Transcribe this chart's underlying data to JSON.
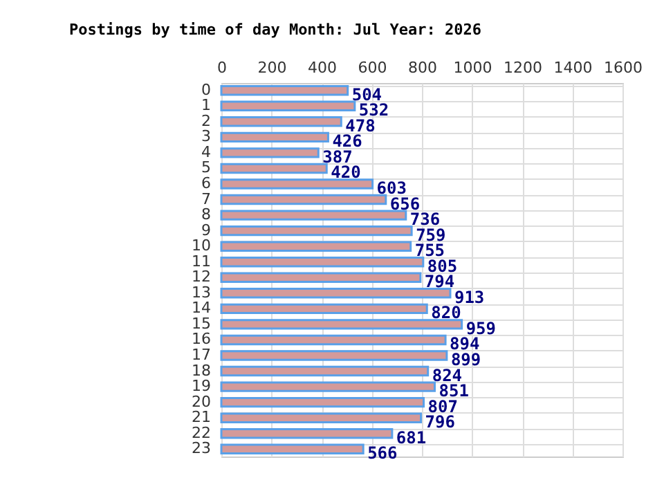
{
  "chart_data": {
    "type": "bar",
    "orientation": "horizontal",
    "title": "Postings by time of day Month: Jul   Year: 2026",
    "categories": [
      "0",
      "1",
      "2",
      "3",
      "4",
      "5",
      "6",
      "7",
      "8",
      "9",
      "10",
      "11",
      "12",
      "13",
      "14",
      "15",
      "16",
      "17",
      "18",
      "19",
      "20",
      "21",
      "22",
      "23"
    ],
    "values": [
      504,
      532,
      478,
      426,
      387,
      420,
      603,
      656,
      736,
      759,
      755,
      805,
      794,
      913,
      820,
      959,
      894,
      899,
      824,
      851,
      807,
      796,
      681,
      566
    ],
    "color": "#d49a9a",
    "xlim": [
      0,
      1600
    ],
    "xticks": [
      0,
      200,
      400,
      600,
      800,
      1000,
      1200,
      1400,
      1600
    ],
    "grid": true,
    "data_labels": true
  }
}
